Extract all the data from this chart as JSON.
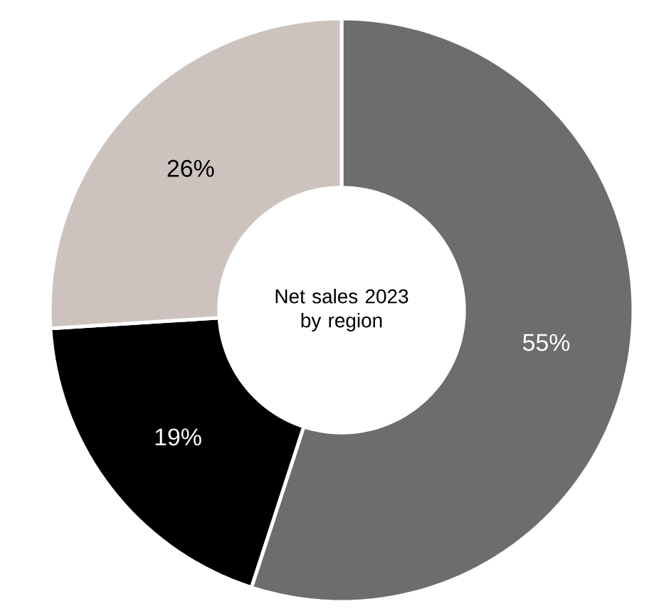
{
  "chart_data": {
    "type": "donut",
    "title": "Net sales 2023 by region",
    "categories": [
      null,
      null,
      null
    ],
    "values": [
      55,
      19,
      26
    ],
    "colors": [
      "#6d6d6d",
      "#000000",
      "#cdc3be"
    ],
    "value_labels": [
      "55%",
      "19%",
      "26%"
    ]
  }
}
